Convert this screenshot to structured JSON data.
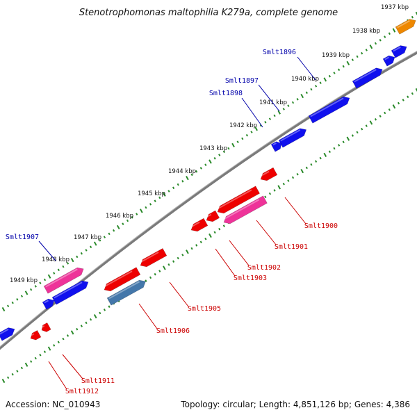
{
  "title": "Stenotrophomonas maltophilia K279a, complete genome",
  "footer": {
    "accession": "Accession: NC_010943",
    "topology": "Topology: circular; Length: 4,851,126 bp; Genes: 4,386"
  },
  "colors": {
    "backbone": "#7a7a7a",
    "tick": "#2a8a2a",
    "forward_gene": "#1010ee",
    "forward_label": "#0000aa",
    "reverse_gene": "#ee0000",
    "reverse_label": "#cc0000",
    "pink_gene": "#ee3399",
    "steel_gene": "#4477aa",
    "orange_gene": "#ee8800"
  },
  "kbp_ticks": [
    "1937 kbp",
    "1938 kbp",
    "1939 kbp",
    "1940 kbp",
    "1941 kbp",
    "1942 kbp",
    "1943 kbp",
    "1944 kbp",
    "1945 kbp",
    "1946 kbp",
    "1947 kbp",
    "1948 kbp",
    "1949 kbp"
  ],
  "forward_labels": [
    "Smlt1896",
    "Smlt1897",
    "Smlt1898",
    "Smlt1907"
  ],
  "reverse_labels": [
    "Smlt1900",
    "Smlt1901",
    "Smlt1902",
    "Smlt1903",
    "Smlt1905",
    "Smlt1906",
    "Smlt1911",
    "Smlt1912"
  ]
}
